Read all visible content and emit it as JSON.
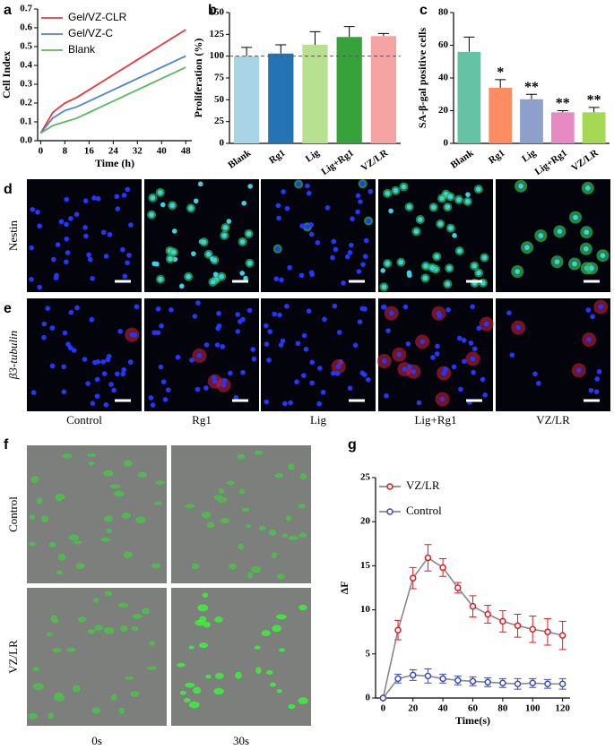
{
  "chart_data": [
    {
      "type": "line",
      "panel_label": "a",
      "xlabel": "Time (h)",
      "ylabel": "Cell Index",
      "x": [
        0,
        4,
        8,
        12,
        16,
        20,
        24,
        28,
        32,
        36,
        40,
        44,
        48
      ],
      "series": [
        {
          "name": "Gel/VZ-CLR",
          "color": "#e8383d",
          "values": [
            0.04,
            0.15,
            0.2,
            0.23,
            0.27,
            0.31,
            0.35,
            0.39,
            0.43,
            0.47,
            0.51,
            0.55,
            0.59
          ]
        },
        {
          "name": "Gel/VZ-C",
          "color": "#4f86c6",
          "values": [
            0.04,
            0.12,
            0.16,
            0.18,
            0.21,
            0.24,
            0.27,
            0.3,
            0.33,
            0.36,
            0.39,
            0.42,
            0.45
          ]
        },
        {
          "name": "Blank",
          "color": "#5cb85c",
          "values": [
            0.04,
            0.08,
            0.1,
            0.12,
            0.15,
            0.18,
            0.21,
            0.24,
            0.27,
            0.3,
            0.33,
            0.36,
            0.39
          ]
        }
      ],
      "xlim": [
        -1,
        50
      ],
      "xticks": [
        0,
        8,
        16,
        24,
        32,
        40,
        48
      ],
      "ylim": [
        0,
        0.7
      ],
      "yticks": [
        {
          "value": 0,
          "label": "0.0"
        },
        0.1,
        0.2,
        0.3,
        0.4,
        0.5,
        0.6,
        0.7
      ],
      "legend": "upper left"
    },
    {
      "type": "bar",
      "panel_label": "b",
      "ylabel": "Proliferation (%)",
      "categories": [
        "Blank",
        "Rg1",
        "Lig",
        "Lig+Rg1",
        "VZ/LR"
      ],
      "values": [
        100,
        103,
        113,
        122,
        123
      ],
      "errors": [
        10,
        10,
        15,
        12,
        3
      ],
      "colors": [
        "#a9d3e6",
        "#2474b5",
        "#b7e08f",
        "#36a33a",
        "#f5a3a3"
      ],
      "ylim": [
        0,
        150
      ],
      "yticks": [
        0,
        25,
        50,
        75,
        100,
        125,
        150
      ],
      "reference_line": 100
    },
    {
      "type": "bar",
      "panel_label": "c",
      "ylabel": "SA-β-gal positive cells",
      "categories": [
        "Blank",
        "Rg1",
        "Lig",
        "Lig+Rg1",
        "VZ/LR"
      ],
      "values": [
        56,
        34,
        27,
        19,
        19
      ],
      "errors": [
        9,
        5,
        3,
        1,
        3
      ],
      "colors": [
        "#66c2a5",
        "#fc8d62",
        "#8da0cb",
        "#e78ac3",
        "#a6d854"
      ],
      "significance": [
        null,
        "*",
        "**",
        "**",
        "**"
      ],
      "ylim": [
        0,
        80
      ],
      "yticks": [
        0,
        20,
        40,
        60,
        80
      ]
    },
    {
      "type": "line",
      "panel_label": "g",
      "xlabel": "Time(s)",
      "ylabel": "ΔF",
      "line_color": "#888888",
      "x": [
        0,
        10,
        20,
        30,
        40,
        50,
        60,
        70,
        80,
        90,
        100,
        110,
        120
      ],
      "series": [
        {
          "name": "VZ/LR",
          "color": "#e31a1c",
          "values": [
            0,
            7.7,
            13.6,
            15.9,
            14.8,
            12.5,
            10.4,
            9.5,
            8.7,
            8.2,
            7.8,
            7.5,
            7.1
          ],
          "errors": [
            0,
            1.1,
            1.2,
            1.5,
            1.0,
            0.6,
            1.2,
            1.0,
            1.2,
            1.3,
            1.5,
            1.5,
            1.6
          ]
        },
        {
          "name": "Control",
          "color": "#3b4cc0",
          "values": [
            0,
            2.2,
            2.6,
            2.5,
            2.2,
            2.0,
            1.9,
            1.8,
            1.7,
            1.6,
            1.7,
            1.6,
            1.6
          ],
          "errors": [
            0,
            0.5,
            0.6,
            0.8,
            0.5,
            0.5,
            0.5,
            0.5,
            0.5,
            0.6,
            0.5,
            0.5,
            0.6
          ]
        }
      ],
      "xlim": [
        -5,
        125
      ],
      "xticks": [
        0,
        20,
        40,
        60,
        80,
        100,
        120
      ],
      "ylim": [
        0,
        25
      ],
      "yticks": [
        0,
        5,
        10,
        15,
        20,
        25
      ],
      "legend": "upper left"
    }
  ],
  "micrographs": {
    "rows": [
      {
        "label": "d",
        "stain": "Nestin"
      },
      {
        "label": "e",
        "stain": "β3-tubulin"
      }
    ],
    "columns": [
      "Control",
      "Rg1",
      "Lig",
      "Lig+Rg1",
      "VZ/LR"
    ]
  },
  "live_imaging": {
    "label": "f",
    "rows": [
      "Control",
      "VZ/LR"
    ],
    "columns": [
      "0s",
      "30s"
    ]
  }
}
